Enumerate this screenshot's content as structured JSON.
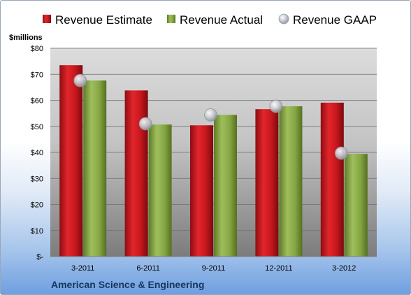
{
  "chart_data": {
    "type": "bar",
    "title": "",
    "ylabel": "$millions",
    "footer": "American Science & Engineering",
    "categories": [
      "3-2011",
      "6-2011",
      "9-2011",
      "12-2011",
      "3-2012"
    ],
    "y_ticks": [
      "$-",
      "$10",
      "$20",
      "$30",
      "$40",
      "$50",
      "$60",
      "$70",
      "$80"
    ],
    "ylim": [
      0,
      80
    ],
    "grid": true,
    "legend_position": "top",
    "series": [
      {
        "name": "Revenue Estimate",
        "kind": "bar",
        "color": "#c0151b",
        "values": [
          73.5,
          63.8,
          50.4,
          56.6,
          59.1
        ]
      },
      {
        "name": "Revenue Actual",
        "kind": "bar",
        "color": "#7f9f3c",
        "values": [
          67.6,
          50.7,
          54.4,
          57.7,
          39.4
        ]
      },
      {
        "name": "Revenue GAAP",
        "kind": "marker",
        "color": "#b8bcc4",
        "values": [
          67.6,
          51.0,
          54.4,
          57.7,
          39.7
        ]
      }
    ]
  }
}
